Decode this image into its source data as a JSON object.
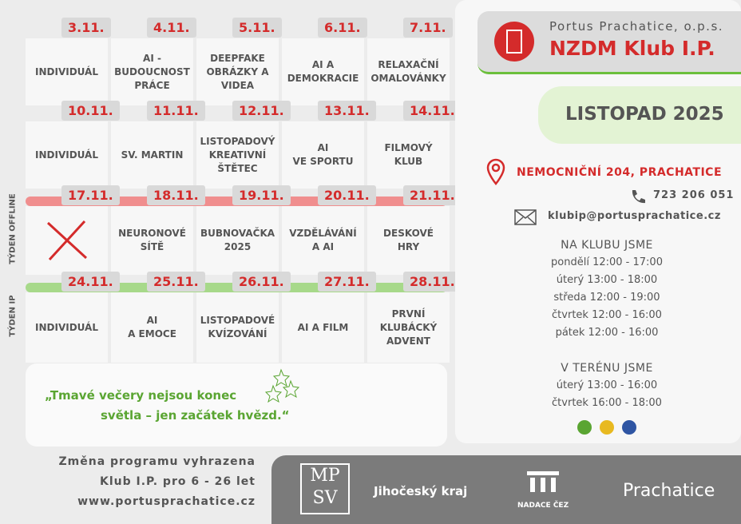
{
  "calendar": {
    "weeks": [
      {
        "days": [
          {
            "date": "3.11.",
            "lines": [
              "INDIVIDUÁL"
            ]
          },
          {
            "date": "4.11.",
            "lines": [
              "AI -",
              "BUDOUCNOST",
              "PRÁCE"
            ]
          },
          {
            "date": "5.11.",
            "lines": [
              "DEEPFAKE",
              "OBRÁZKY A",
              "VIDEA"
            ]
          },
          {
            "date": "6.11.",
            "lines": [
              "AI A",
              "DEMOKRACIE"
            ]
          },
          {
            "date": "7.11.",
            "lines": [
              "RELAXAČNÍ",
              "OMALOVÁNKY"
            ]
          }
        ]
      },
      {
        "days": [
          {
            "date": "10.11.",
            "lines": [
              "INDIVIDUÁL"
            ]
          },
          {
            "date": "11.11.",
            "lines": [
              "SV. MARTIN"
            ]
          },
          {
            "date": "12.11.",
            "lines": [
              "LISTOPADOVÝ",
              "KREATIVNÍ",
              "ŠTĚTEC"
            ]
          },
          {
            "date": "13.11.",
            "lines": [
              "AI",
              "VE SPORTU"
            ]
          },
          {
            "date": "14.11.",
            "lines": [
              "FILMOVÝ",
              "KLUB"
            ]
          }
        ]
      },
      {
        "label": "TÝDEN OFFLINE",
        "days": [
          {
            "date": "17.11.",
            "lines": []
          },
          {
            "date": "18.11.",
            "lines": [
              "NEURONOVÉ",
              "SÍTĚ"
            ]
          },
          {
            "date": "19.11.",
            "lines": [
              "BUBNOVAČKA",
              "2025"
            ]
          },
          {
            "date": "20.11.",
            "lines": [
              "VZDĚLÁVÁNÍ",
              "A AI"
            ]
          },
          {
            "date": "21.11.",
            "lines": [
              "DESKOVÉ",
              "HRY"
            ]
          }
        ]
      },
      {
        "label": "TÝDEN IP",
        "days": [
          {
            "date": "24.11.",
            "lines": [
              "INDIVIDUÁL"
            ]
          },
          {
            "date": "25.11.",
            "lines": [
              "AI",
              "A EMOCE"
            ]
          },
          {
            "date": "26.11.",
            "lines": [
              "LISTOPADOVÉ",
              "KVÍZOVÁNÍ"
            ]
          },
          {
            "date": "27.11.",
            "lines": [
              "AI A FILM"
            ]
          },
          {
            "date": "28.11.",
            "lines": [
              "PRVNÍ",
              "KLUBÁCKÝ",
              "ADVENT"
            ]
          }
        ]
      }
    ]
  },
  "quote": {
    "lines": [
      "„Tmavé večery nejsou konec",
      "světla – jen začátek hvězd.“"
    ]
  },
  "notes": [
    "Změna programu vyhrazena",
    "Klub I.P. pro  6 - 26  let",
    "www.portusprachatice.cz"
  ],
  "header": {
    "org": "Portus Prachatice, o.p.s.",
    "title": "NZDM Klub I.P."
  },
  "month": "LISTOPAD 2025",
  "contact": {
    "address": "NEMOCNIČNÍ 204, PRACHATICE",
    "phone": "723 206 051",
    "email": "klubip@portusprachatice.cz"
  },
  "hours": [
    {
      "title": "NA KLUBU JSME",
      "lines": [
        "pondělí 12:00 - 17:00",
        "úterý 13:00 - 18:00",
        "středa 12:00 - 19:00",
        "čtvrtek 12:00 - 16:00",
        "pátek 12:00 - 16:00"
      ]
    },
    {
      "title": "V TERÉNU JSME",
      "lines": [
        "úterý 13:00 - 16:00",
        "čtvrtek 16:00 - 18:00"
      ]
    }
  ],
  "sponsors": {
    "mpsv": [
      "MP",
      "SV"
    ],
    "kraj": "Jihočeský kraj",
    "cez": "NADACE ČEZ",
    "town": "Prachatice"
  }
}
